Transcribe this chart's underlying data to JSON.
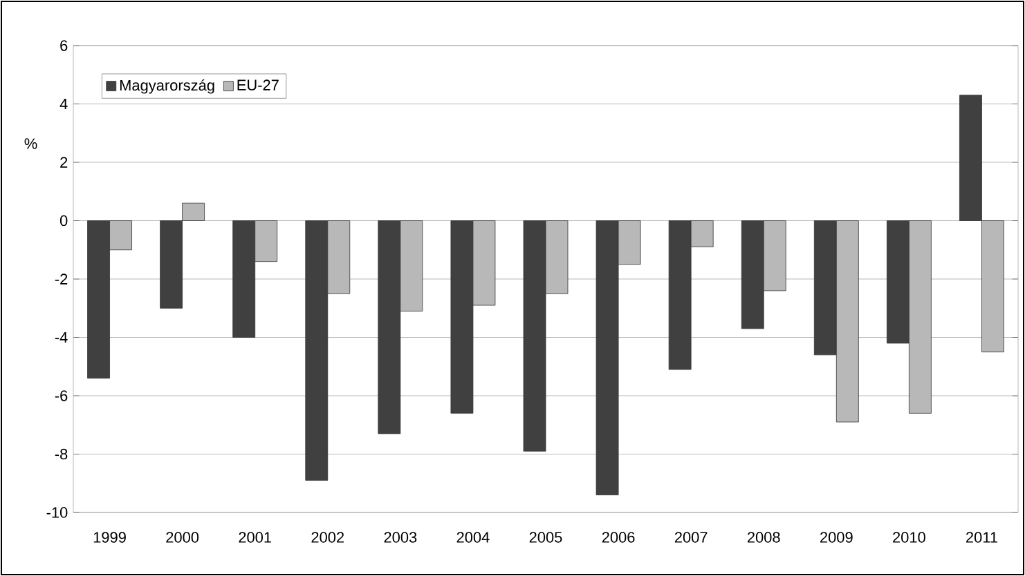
{
  "chart_data": {
    "type": "bar",
    "ylabel": "%",
    "categories": [
      "1999",
      "2000",
      "2001",
      "2002",
      "2003",
      "2004",
      "2005",
      "2006",
      "2007",
      "2008",
      "2009",
      "2010",
      "2011"
    ],
    "series": [
      {
        "name": "Magyarország",
        "color": "#404040",
        "values": [
          -5.4,
          -3.0,
          -4.0,
          -8.9,
          -7.3,
          -6.6,
          -7.9,
          -9.4,
          -5.1,
          -3.7,
          -4.6,
          -4.2,
          4.3
        ]
      },
      {
        "name": "EU-27",
        "color": "#b8b8b8",
        "values": [
          -1.0,
          0.6,
          -1.4,
          -2.5,
          -3.1,
          -2.9,
          -2.5,
          -1.5,
          -0.9,
          -2.4,
          -6.9,
          -6.6,
          -4.5
        ]
      }
    ],
    "ylim": [
      -10,
      6
    ],
    "yticks": [
      -10,
      -8,
      -6,
      -4,
      -2,
      0,
      2,
      4,
      6
    ],
    "grid": "y",
    "legend": "top left"
  }
}
